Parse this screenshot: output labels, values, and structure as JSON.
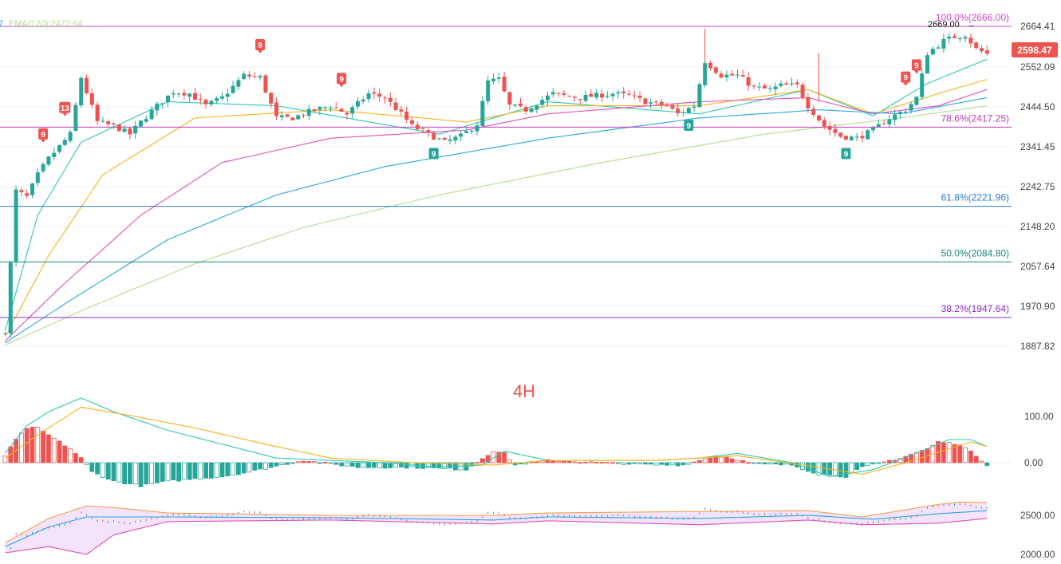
{
  "header": {
    "fragment": "7",
    "ema_label": "EMA(120):2472.64"
  },
  "timeframe_label": "4H",
  "colors": {
    "up": "#26a69a",
    "down": "#ef5350",
    "ema_a": "#2cc7b6",
    "ema_b": "#f6b21a",
    "ema_c": "#e24fb5",
    "ema_d": "#29a6e0",
    "ema_e": "#b4dc8f",
    "fib_top": "#d048c8",
    "fib_786": "#c039b8",
    "fib_618": "#2e7bd0",
    "fib_50": "#1a8a7a",
    "fib_382": "#8a2bd0",
    "macd_fast": "#2cc7b6",
    "macd_slow": "#f6b21a",
    "bb_upper": "#f6a04d",
    "bb_lower": "#e24fb5",
    "bb_mid": "#29a6e0",
    "bb_fill": "#f3e3fb",
    "price_tag": "#ef5350",
    "grid": "#f0f2f5",
    "axis_text": "#444444"
  },
  "axes": {
    "price_ticks": [
      "2664.41",
      "2552.09",
      "2444.50",
      "2341.45",
      "2242.75",
      "2148.20",
      "2057.64",
      "1970.90",
      "1887.82"
    ],
    "macd_ticks": [
      "100.00",
      "0.00"
    ],
    "bb_ticks": [
      "2500.00",
      "2000.00"
    ]
  },
  "price_tag": "2598.47",
  "high_marker": "2669.00",
  "fib_levels": [
    {
      "name": "top",
      "label": "100.0%(2666.00)",
      "value": 2666.0
    },
    {
      "name": "786",
      "label": "78.6%(2417.25)",
      "value": 2417.25
    },
    {
      "name": "618",
      "label": "61.8%(2221.96)",
      "value": 2221.96
    },
    {
      "name": "50",
      "label": "50.0%(2084.80)",
      "value": 2084.8
    },
    {
      "name": "382",
      "label": "38.2%(1947.64)",
      "value": 1947.64
    }
  ],
  "signals": [
    {
      "text": "13",
      "i": 11,
      "kind": "sell"
    },
    {
      "text": "9",
      "i": 7,
      "kind": "sell"
    },
    {
      "text": "9",
      "i": 47,
      "kind": "sell"
    },
    {
      "text": "9",
      "i": 62,
      "kind": "sell"
    },
    {
      "text": "9",
      "i": 79,
      "kind": "buy"
    },
    {
      "text": "9",
      "i": 126,
      "kind": "buy"
    },
    {
      "text": "9",
      "i": 155,
      "kind": "buy"
    },
    {
      "text": "9",
      "i": 166,
      "kind": "sell"
    },
    {
      "text": "9",
      "i": 168,
      "kind": "sell"
    }
  ],
  "chart_data": {
    "type": "candlestick",
    "title": "4H",
    "ylim": [
      1860,
      2690
    ],
    "indicators": [
      "EMA",
      "Fibonacci",
      "MACD",
      "Bollinger Bands"
    ],
    "close_path": [
      [
        0,
        1915
      ],
      [
        1,
        2080
      ],
      [
        2,
        2260
      ],
      [
        4,
        2245
      ],
      [
        6,
        2300
      ],
      [
        8,
        2340
      ],
      [
        10,
        2370
      ],
      [
        12,
        2400
      ],
      [
        14,
        2540
      ],
      [
        17,
        2430
      ],
      [
        20,
        2420
      ],
      [
        23,
        2400
      ],
      [
        25,
        2430
      ],
      [
        28,
        2470
      ],
      [
        31,
        2505
      ],
      [
        34,
        2500
      ],
      [
        37,
        2470
      ],
      [
        40,
        2490
      ],
      [
        44,
        2545
      ],
      [
        47,
        2540
      ],
      [
        50,
        2440
      ],
      [
        53,
        2440
      ],
      [
        56,
        2455
      ],
      [
        60,
        2470
      ],
      [
        63,
        2450
      ],
      [
        67,
        2500
      ],
      [
        70,
        2490
      ],
      [
        73,
        2450
      ],
      [
        75,
        2420
      ],
      [
        78,
        2400
      ],
      [
        81,
        2380
      ],
      [
        84,
        2395
      ],
      [
        87,
        2425
      ],
      [
        89,
        2530
      ],
      [
        91,
        2535
      ],
      [
        93,
        2470
      ],
      [
        96,
        2460
      ],
      [
        99,
        2485
      ],
      [
        101,
        2500
      ],
      [
        103,
        2495
      ],
      [
        106,
        2490
      ],
      [
        109,
        2495
      ],
      [
        112,
        2500
      ],
      [
        115,
        2495
      ],
      [
        118,
        2480
      ],
      [
        122,
        2470
      ],
      [
        124,
        2450
      ],
      [
        127,
        2470
      ],
      [
        129,
        2580
      ],
      [
        132,
        2545
      ],
      [
        135,
        2545
      ],
      [
        138,
        2515
      ],
      [
        141,
        2510
      ],
      [
        143,
        2520
      ],
      [
        146,
        2520
      ],
      [
        148,
        2470
      ],
      [
        151,
        2420
      ],
      [
        154,
        2395
      ],
      [
        157,
        2390
      ],
      [
        160,
        2410
      ],
      [
        163,
        2440
      ],
      [
        166,
        2460
      ],
      [
        168,
        2490
      ],
      [
        170,
        2600
      ],
      [
        173,
        2630
      ],
      [
        175,
        2640
      ],
      [
        177,
        2645
      ],
      [
        179,
        2610
      ],
      [
        181,
        2598
      ]
    ],
    "ema": [
      {
        "id": "a",
        "values": [
          [
            0,
            1915
          ],
          [
            6,
            2200
          ],
          [
            14,
            2380
          ],
          [
            30,
            2480
          ],
          [
            50,
            2470
          ],
          [
            80,
            2400
          ],
          [
            100,
            2480
          ],
          [
            128,
            2450
          ],
          [
            148,
            2510
          ],
          [
            160,
            2445
          ],
          [
            170,
            2525
          ],
          [
            181,
            2585
          ]
        ]
      },
      {
        "id": "b",
        "values": [
          [
            0,
            1900
          ],
          [
            8,
            2100
          ],
          [
            18,
            2300
          ],
          [
            35,
            2440
          ],
          [
            60,
            2460
          ],
          [
            85,
            2430
          ],
          [
            100,
            2470
          ],
          [
            128,
            2470
          ],
          [
            148,
            2510
          ],
          [
            160,
            2450
          ],
          [
            172,
            2500
          ],
          [
            181,
            2535
          ]
        ]
      },
      {
        "id": "c",
        "values": [
          [
            0,
            1890
          ],
          [
            10,
            2020
          ],
          [
            25,
            2200
          ],
          [
            40,
            2330
          ],
          [
            60,
            2390
          ],
          [
            85,
            2410
          ],
          [
            100,
            2450
          ],
          [
            128,
            2480
          ],
          [
            148,
            2490
          ],
          [
            160,
            2450
          ],
          [
            172,
            2470
          ],
          [
            181,
            2510
          ]
        ]
      },
      {
        "id": "d",
        "values": [
          [
            0,
            1885
          ],
          [
            12,
            1990
          ],
          [
            30,
            2140
          ],
          [
            50,
            2250
          ],
          [
            70,
            2320
          ],
          [
            100,
            2390
          ],
          [
            128,
            2440
          ],
          [
            150,
            2460
          ],
          [
            165,
            2450
          ],
          [
            181,
            2490
          ]
        ]
      },
      {
        "id": "e",
        "values": [
          [
            0,
            1880
          ],
          [
            15,
            1970
          ],
          [
            35,
            2080
          ],
          [
            55,
            2170
          ],
          [
            80,
            2250
          ],
          [
            110,
            2330
          ],
          [
            140,
            2400
          ],
          [
            165,
            2440
          ],
          [
            181,
            2470
          ]
        ]
      }
    ],
    "macd": {
      "ylim": [
        -80,
        140
      ],
      "hist_path": [
        [
          0,
          15
        ],
        [
          2,
          50
        ],
        [
          4,
          75
        ],
        [
          6,
          75
        ],
        [
          8,
          60
        ],
        [
          10,
          45
        ],
        [
          12,
          30
        ],
        [
          14,
          10
        ],
        [
          16,
          -20
        ],
        [
          20,
          -40
        ],
        [
          25,
          -50
        ],
        [
          30,
          -40
        ],
        [
          35,
          -35
        ],
        [
          40,
          -30
        ],
        [
          45,
          -20
        ],
        [
          55,
          5
        ],
        [
          65,
          -10
        ],
        [
          75,
          -10
        ],
        [
          85,
          -15
        ],
        [
          88,
          10
        ],
        [
          90,
          25
        ],
        [
          92,
          20
        ],
        [
          94,
          -5
        ],
        [
          100,
          5
        ],
        [
          110,
          0
        ],
        [
          120,
          -5
        ],
        [
          125,
          -5
        ],
        [
          128,
          5
        ],
        [
          131,
          15
        ],
        [
          134,
          10
        ],
        [
          138,
          -3
        ],
        [
          145,
          -5
        ],
        [
          150,
          -25
        ],
        [
          155,
          -30
        ],
        [
          158,
          -10
        ],
        [
          165,
          10
        ],
        [
          170,
          30
        ],
        [
          172,
          45
        ],
        [
          176,
          40
        ],
        [
          179,
          15
        ],
        [
          181,
          -5
        ]
      ],
      "fast_path": [
        [
          0,
          20
        ],
        [
          4,
          80
        ],
        [
          8,
          110
        ],
        [
          14,
          140
        ],
        [
          20,
          110
        ],
        [
          30,
          70
        ],
        [
          40,
          40
        ],
        [
          50,
          10
        ],
        [
          60,
          5
        ],
        [
          70,
          0
        ],
        [
          80,
          -10
        ],
        [
          88,
          -5
        ],
        [
          92,
          25
        ],
        [
          100,
          5
        ],
        [
          120,
          5
        ],
        [
          128,
          10
        ],
        [
          135,
          20
        ],
        [
          145,
          0
        ],
        [
          152,
          -30
        ],
        [
          160,
          -15
        ],
        [
          168,
          20
        ],
        [
          174,
          50
        ],
        [
          178,
          50
        ],
        [
          181,
          35
        ]
      ],
      "slow_path": [
        [
          0,
          10
        ],
        [
          6,
          60
        ],
        [
          14,
          120
        ],
        [
          24,
          100
        ],
        [
          35,
          75
        ],
        [
          48,
          40
        ],
        [
          60,
          10
        ],
        [
          75,
          0
        ],
        [
          90,
          -5
        ],
        [
          100,
          5
        ],
        [
          120,
          5
        ],
        [
          135,
          15
        ],
        [
          150,
          -10
        ],
        [
          158,
          -25
        ],
        [
          166,
          0
        ],
        [
          174,
          30
        ],
        [
          178,
          45
        ],
        [
          181,
          35
        ]
      ]
    },
    "bb": {
      "ylim": [
        1980,
        2700
      ],
      "mid_path": [
        [
          0,
          2100
        ],
        [
          8,
          2350
        ],
        [
          15,
          2480
        ],
        [
          30,
          2480
        ],
        [
          60,
          2470
        ],
        [
          90,
          2440
        ],
        [
          100,
          2480
        ],
        [
          128,
          2460
        ],
        [
          148,
          2500
        ],
        [
          160,
          2450
        ],
        [
          172,
          2520
        ],
        [
          181,
          2560
        ]
      ],
      "upper_path": [
        [
          0,
          2150
        ],
        [
          8,
          2460
        ],
        [
          15,
          2620
        ],
        [
          20,
          2600
        ],
        [
          30,
          2530
        ],
        [
          60,
          2500
        ],
        [
          90,
          2500
        ],
        [
          100,
          2530
        ],
        [
          128,
          2550
        ],
        [
          148,
          2560
        ],
        [
          158,
          2480
        ],
        [
          172,
          2640
        ],
        [
          176,
          2670
        ],
        [
          181,
          2665
        ]
      ],
      "lower_path": [
        [
          0,
          2020
        ],
        [
          8,
          2100
        ],
        [
          15,
          2000
        ],
        [
          20,
          2250
        ],
        [
          30,
          2420
        ],
        [
          60,
          2440
        ],
        [
          90,
          2390
        ],
        [
          100,
          2430
        ],
        [
          128,
          2380
        ],
        [
          148,
          2440
        ],
        [
          158,
          2380
        ],
        [
          166,
          2390
        ],
        [
          172,
          2400
        ],
        [
          181,
          2460
        ]
      ]
    }
  }
}
